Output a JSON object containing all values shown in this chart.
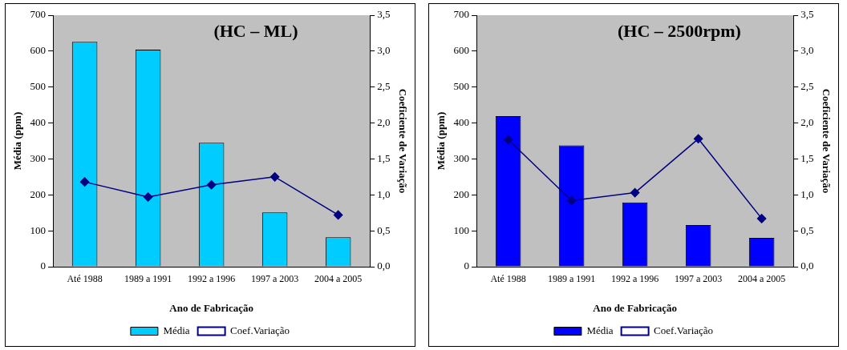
{
  "chart_data": [
    {
      "type": "bar",
      "title": "(HC – ML)",
      "xlabel": "Ano de Fabricação",
      "ylabel": "Média (ppm)",
      "y2label": "Coeficiente de Variação",
      "categories": [
        "Até 1988",
        "1989 a 1991",
        "1992 a 1996",
        "1997 a 2003",
        "2004 a 2005"
      ],
      "series": [
        {
          "name": "Média",
          "type": "bar",
          "color": "#00ccff",
          "values": [
            626,
            604,
            345,
            151,
            82
          ]
        },
        {
          "name": "Coef.Variação",
          "type": "line",
          "axis": "y2",
          "color": "#000080",
          "marker": "diamond",
          "values": [
            1.18,
            0.97,
            1.14,
            1.25,
            0.72
          ]
        }
      ],
      "ylim": [
        0,
        700
      ],
      "yticks": [
        0,
        100,
        200,
        300,
        400,
        500,
        600,
        700
      ],
      "y2lim": [
        0,
        3.5
      ],
      "y2ticks": [
        {
          "value": 0,
          "label": "0,0"
        },
        {
          "value": 0.5,
          "label": "0,5"
        },
        {
          "value": 1,
          "label": "1,0"
        },
        {
          "value": 1.5,
          "label": "1,5"
        },
        {
          "value": 2,
          "label": "2,0"
        },
        {
          "value": 2.5,
          "label": "2,5"
        },
        {
          "value": 3,
          "label": "3,0"
        },
        {
          "value": 3.5,
          "label": "3,5"
        }
      ],
      "grid": false,
      "legend": "bottom"
    },
    {
      "type": "bar",
      "title": "(HC – 2500rpm)",
      "xlabel": "Ano de Fabricação",
      "ylabel": "Média (ppm)",
      "y2label": "Coeficiente de Variação",
      "categories": [
        "Até 1988",
        "1989 a 1991",
        "1992 a 1996",
        "1997 a 2003",
        "2004 a 2005"
      ],
      "series": [
        {
          "name": "Média",
          "type": "bar",
          "color": "#0000ff",
          "values": [
            419,
            338,
            179,
            116,
            80
          ]
        },
        {
          "name": "Coef.Variação",
          "type": "line",
          "axis": "y2",
          "color": "#000080",
          "marker": "diamond",
          "values": [
            1.77,
            0.92,
            1.03,
            1.78,
            0.67
          ]
        }
      ],
      "ylim": [
        0,
        700
      ],
      "yticks": [
        0,
        100,
        200,
        300,
        400,
        500,
        600,
        700
      ],
      "y2lim": [
        0,
        3.5
      ],
      "y2ticks": [
        {
          "value": 0,
          "label": "0,0"
        },
        {
          "value": 0.5,
          "label": "0,5"
        },
        {
          "value": 1,
          "label": "1,0"
        },
        {
          "value": 1.5,
          "label": "1,5"
        },
        {
          "value": 2,
          "label": "2,0"
        },
        {
          "value": 2.5,
          "label": "2,5"
        },
        {
          "value": 3,
          "label": "3,0"
        },
        {
          "value": 3.5,
          "label": "3,5"
        }
      ],
      "grid": false,
      "legend": "bottom"
    }
  ]
}
